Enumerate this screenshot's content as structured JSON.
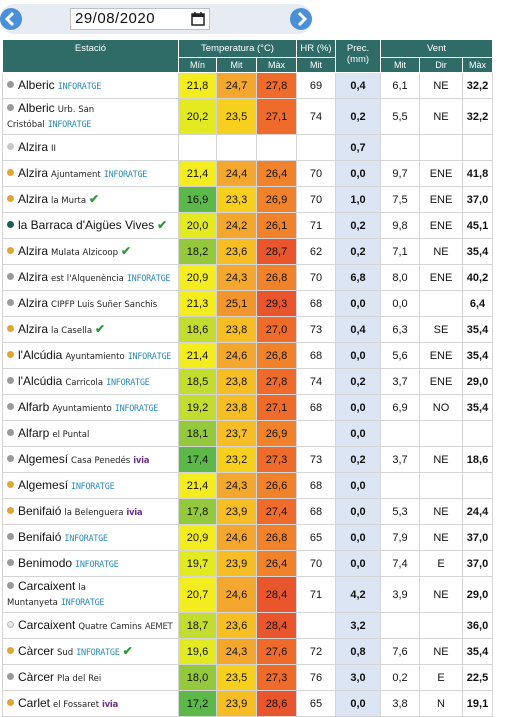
{
  "date": "29/08/2020",
  "header": {
    "station": "Estació",
    "temperature": "Temperatura (°C)",
    "humidity": "HR (%)",
    "precipitation": "Prec. (mm)",
    "wind": "Vent",
    "subheaders": [
      "Mín",
      "Mit",
      "Màx",
      "Mit",
      "Mit",
      "Dir",
      "Màx"
    ]
  },
  "rows": [
    {
      "name": "Alberic",
      "sub": null,
      "tag": "INFORATGE",
      "check": false,
      "dot": "#9a9a9a",
      "values": [
        "21,8",
        "24,7",
        "27,8",
        "69",
        "0,4",
        "6,1",
        "NE",
        "32,2"
      ]
    },
    {
      "name": "Alberic",
      "sub": "Urb. San Cristóbal",
      "tag": "INFORATGE",
      "check": false,
      "dot": "#9a9a9a",
      "values": [
        "20,2",
        "23,5",
        "27,1",
        "74",
        "0,2",
        "5,5",
        "NE",
        "32,2"
      ]
    },
    {
      "name": "Alzira",
      "sub": "II",
      "tag": null,
      "check": false,
      "dot": "#c8c8c8",
      "values": [
        null,
        null,
        null,
        null,
        "0,7",
        null,
        null,
        null
      ]
    },
    {
      "name": "Alzira",
      "sub": "Ajuntament",
      "tag": "INFORATGE",
      "check": false,
      "dot": "#e0a43a",
      "values": [
        "21,4",
        "24,4",
        "26,4",
        "70",
        "0,0",
        "9,7",
        "ENE",
        "41,8"
      ]
    },
    {
      "name": "Alzira",
      "sub": "la Murta",
      "tag": null,
      "check": true,
      "dot": "#e0a43a",
      "values": [
        "16,9",
        "23,3",
        "26,9",
        "70",
        "1,0",
        "7,5",
        "ENE",
        "37,0"
      ]
    },
    {
      "name": "la Barraca d'Aigües Vives",
      "sub": null,
      "tag": null,
      "check": true,
      "dot": "#1e5e5a",
      "values": [
        "20,0",
        "24,2",
        "26,1",
        "71",
        "0,2",
        "9,8",
        "ENE",
        "45,1"
      ]
    },
    {
      "name": "Alzira",
      "sub": "Mulata Alzicoop",
      "tag": null,
      "check": true,
      "dot": "#e0a43a",
      "values": [
        "18,2",
        "23,6",
        "28,7",
        "62",
        "0,2",
        "7,1",
        "NE",
        "35,4"
      ]
    },
    {
      "name": "Alzira",
      "sub": "est l'Alquenència",
      "tag": "INFORATGE",
      "check": false,
      "dot": "#9a9a9a",
      "values": [
        "20,9",
        "24,3",
        "26,8",
        "70",
        "6,8",
        "8,0",
        "ENE",
        "40,2"
      ]
    },
    {
      "name": "Alzira",
      "sub": "CIPFP Luis Suñer Sanchis",
      "tag": null,
      "check": false,
      "dot": "#9a9a9a",
      "values": [
        "21,3",
        "25,1",
        "29,3",
        "68",
        "0,0",
        "0,0",
        null,
        "6,4"
      ]
    },
    {
      "name": "Alzira",
      "sub": "la Casella",
      "tag": null,
      "check": true,
      "dot": "#e0a43a",
      "values": [
        "18,6",
        "23,8",
        "27,0",
        "73",
        "0,4",
        "6,3",
        "SE",
        "35,4"
      ]
    },
    {
      "name": "l'Alcúdia",
      "sub": "Ayuntamiento",
      "tag": "INFORATGE",
      "check": false,
      "dot": "#e0a43a",
      "values": [
        "21,4",
        "24,6",
        "26,8",
        "68",
        "0,0",
        "5,6",
        "ENE",
        "35,4"
      ]
    },
    {
      "name": "l'Alcúdia",
      "sub": "Carricola",
      "tag": "INFORATGE",
      "check": false,
      "dot": "#9a9a9a",
      "values": [
        "18,5",
        "23,8",
        "27,8",
        "74",
        "0,2",
        "3,7",
        "ENE",
        "29,0"
      ]
    },
    {
      "name": "Alfarb",
      "sub": "Ayuntamiento",
      "tag": "INFORATGE",
      "check": false,
      "dot": "#9a9a9a",
      "values": [
        "19,2",
        "23,8",
        "27,1",
        "68",
        "0,0",
        "6,9",
        "NO",
        "35,4"
      ]
    },
    {
      "name": "Alfarp",
      "sub": "el Puntal",
      "tag": null,
      "check": false,
      "dot": "#9a9a9a",
      "values": [
        "18,1",
        "23,7",
        "26,9",
        null,
        "0,0",
        null,
        null,
        null
      ]
    },
    {
      "name": "Algemesí",
      "sub": "Casa Penedés",
      "tag": "ivia",
      "check": false,
      "dot": "#9a9a9a",
      "values": [
        "17,4",
        "23,2",
        "27,3",
        "73",
        "0,2",
        "3,7",
        "NE",
        "18,6"
      ]
    },
    {
      "name": "Algemesí",
      "sub": null,
      "tag": "INFORATGE",
      "check": false,
      "dot": "#e0a43a",
      "values": [
        "21,4",
        "24,3",
        "26,6",
        "68",
        "0,0",
        null,
        null,
        null
      ]
    },
    {
      "name": "Benifaió",
      "sub": "la Belenguera",
      "tag": "ivia",
      "check": false,
      "dot": "#e0a43a",
      "values": [
        "17,8",
        "23,9",
        "27,4",
        "68",
        "0,0",
        "5,3",
        "NE",
        "24,4"
      ]
    },
    {
      "name": "Benifaió",
      "sub": null,
      "tag": "INFORATGE",
      "check": false,
      "dot": "#9a9a9a",
      "values": [
        "20,9",
        "24,6",
        "26,8",
        "65",
        "0,0",
        "7,9",
        "NE",
        "37,0"
      ]
    },
    {
      "name": "Benimodo",
      "sub": null,
      "tag": "INFORATGE",
      "check": false,
      "dot": "#9a9a9a",
      "values": [
        "19,7",
        "23,9",
        "26,4",
        "70",
        "0,0",
        "7,4",
        "E",
        "37,0"
      ]
    },
    {
      "name": "Carcaixent",
      "sub": "la Muntanyeta",
      "tag": "INFORATGE",
      "check": false,
      "dot": "#9a9a9a",
      "values": [
        "20,7",
        "24,6",
        "28,4",
        "71",
        "4,2",
        "3,9",
        "NE",
        "29,0"
      ]
    },
    {
      "name": "Carcaixent",
      "sub": "Quatre Camins",
      "tag": "AEMET",
      "check": false,
      "dot": "#e6e6e6",
      "values": [
        "18,7",
        "23,6",
        "28,4",
        null,
        "3,2",
        null,
        null,
        "36,0"
      ]
    },
    {
      "name": "Càrcer",
      "sub": "Sud",
      "tag": "INFORATGE",
      "check": true,
      "dot": "#e0a43a",
      "values": [
        "19,6",
        "24,3",
        "27,6",
        "72",
        "0,8",
        "7,6",
        "NE",
        "35,4"
      ]
    },
    {
      "name": "Càrcer",
      "sub": "Pla del Rei",
      "tag": null,
      "check": false,
      "dot": "#9a9a9a",
      "values": [
        "18,0",
        "23,5",
        "27,3",
        "76",
        "3,0",
        "0,2",
        "E",
        "22,5"
      ]
    },
    {
      "name": "Carlet",
      "sub": "el Fossaret",
      "tag": "ivia",
      "check": false,
      "dot": "#e0a43a",
      "values": [
        "17,2",
        "23,9",
        "28,6",
        "65",
        "0,0",
        "3,8",
        "N",
        "19,1"
      ]
    }
  ]
}
